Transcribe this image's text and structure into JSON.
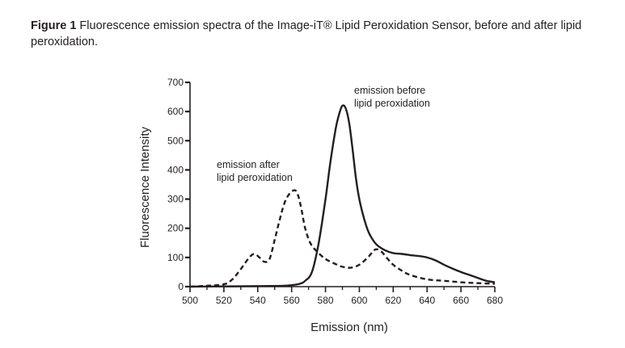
{
  "figure": {
    "label": "Figure 1",
    "caption": " Fluorescence emission spectra of the Image-iT® Lipid Peroxidation Sensor, before and after lipid peroxidation."
  },
  "chart_data": {
    "type": "line",
    "xlabel": "Emission (nm)",
    "ylabel": "Fluorescence Intensity",
    "xlim": [
      500,
      680
    ],
    "ylim": [
      0,
      700
    ],
    "xticks": [
      500,
      520,
      540,
      560,
      580,
      600,
      620,
      640,
      660,
      680
    ],
    "yticks": [
      0,
      100,
      200,
      300,
      400,
      500,
      600,
      700
    ],
    "grid": false,
    "annotations": [
      {
        "lines": [
          "emission before",
          "lipid peroxidation"
        ],
        "series": "before"
      },
      {
        "lines": [
          "emission after",
          "lipid peroxidation"
        ],
        "series": "after"
      }
    ],
    "series": [
      {
        "key": "before",
        "style": "solid",
        "x": [
          500,
          540,
          555,
          560,
          565,
          568,
          572,
          576,
          580,
          583,
          586,
          588,
          590,
          592,
          594,
          596,
          598,
          600,
          602,
          604,
          606,
          610,
          615,
          620,
          625,
          630,
          635,
          640,
          645,
          650,
          655,
          660,
          665,
          670,
          675,
          680
        ],
        "y": [
          0,
          2,
          3,
          5,
          10,
          20,
          50,
          150,
          300,
          430,
          540,
          590,
          620,
          610,
          560,
          470,
          370,
          300,
          250,
          210,
          180,
          145,
          125,
          115,
          112,
          108,
          105,
          100,
          90,
          75,
          62,
          50,
          40,
          30,
          20,
          15
        ]
      },
      {
        "key": "after",
        "style": "dashed",
        "x": [
          500,
          510,
          520,
          525,
          530,
          535,
          538,
          541,
          544,
          547,
          550,
          553,
          556,
          559,
          562,
          564,
          566,
          568,
          571,
          575,
          580,
          585,
          590,
          595,
          600,
          605,
          608,
          610,
          613,
          616,
          620,
          625,
          630,
          640,
          650,
          660,
          670,
          680
        ],
        "y": [
          0,
          3,
          8,
          25,
          60,
          100,
          112,
          100,
          85,
          95,
          160,
          230,
          290,
          320,
          330,
          310,
          260,
          200,
          150,
          120,
          95,
          80,
          68,
          65,
          75,
          100,
          120,
          128,
          120,
          100,
          75,
          55,
          40,
          25,
          20,
          15,
          12,
          10
        ]
      }
    ]
  }
}
